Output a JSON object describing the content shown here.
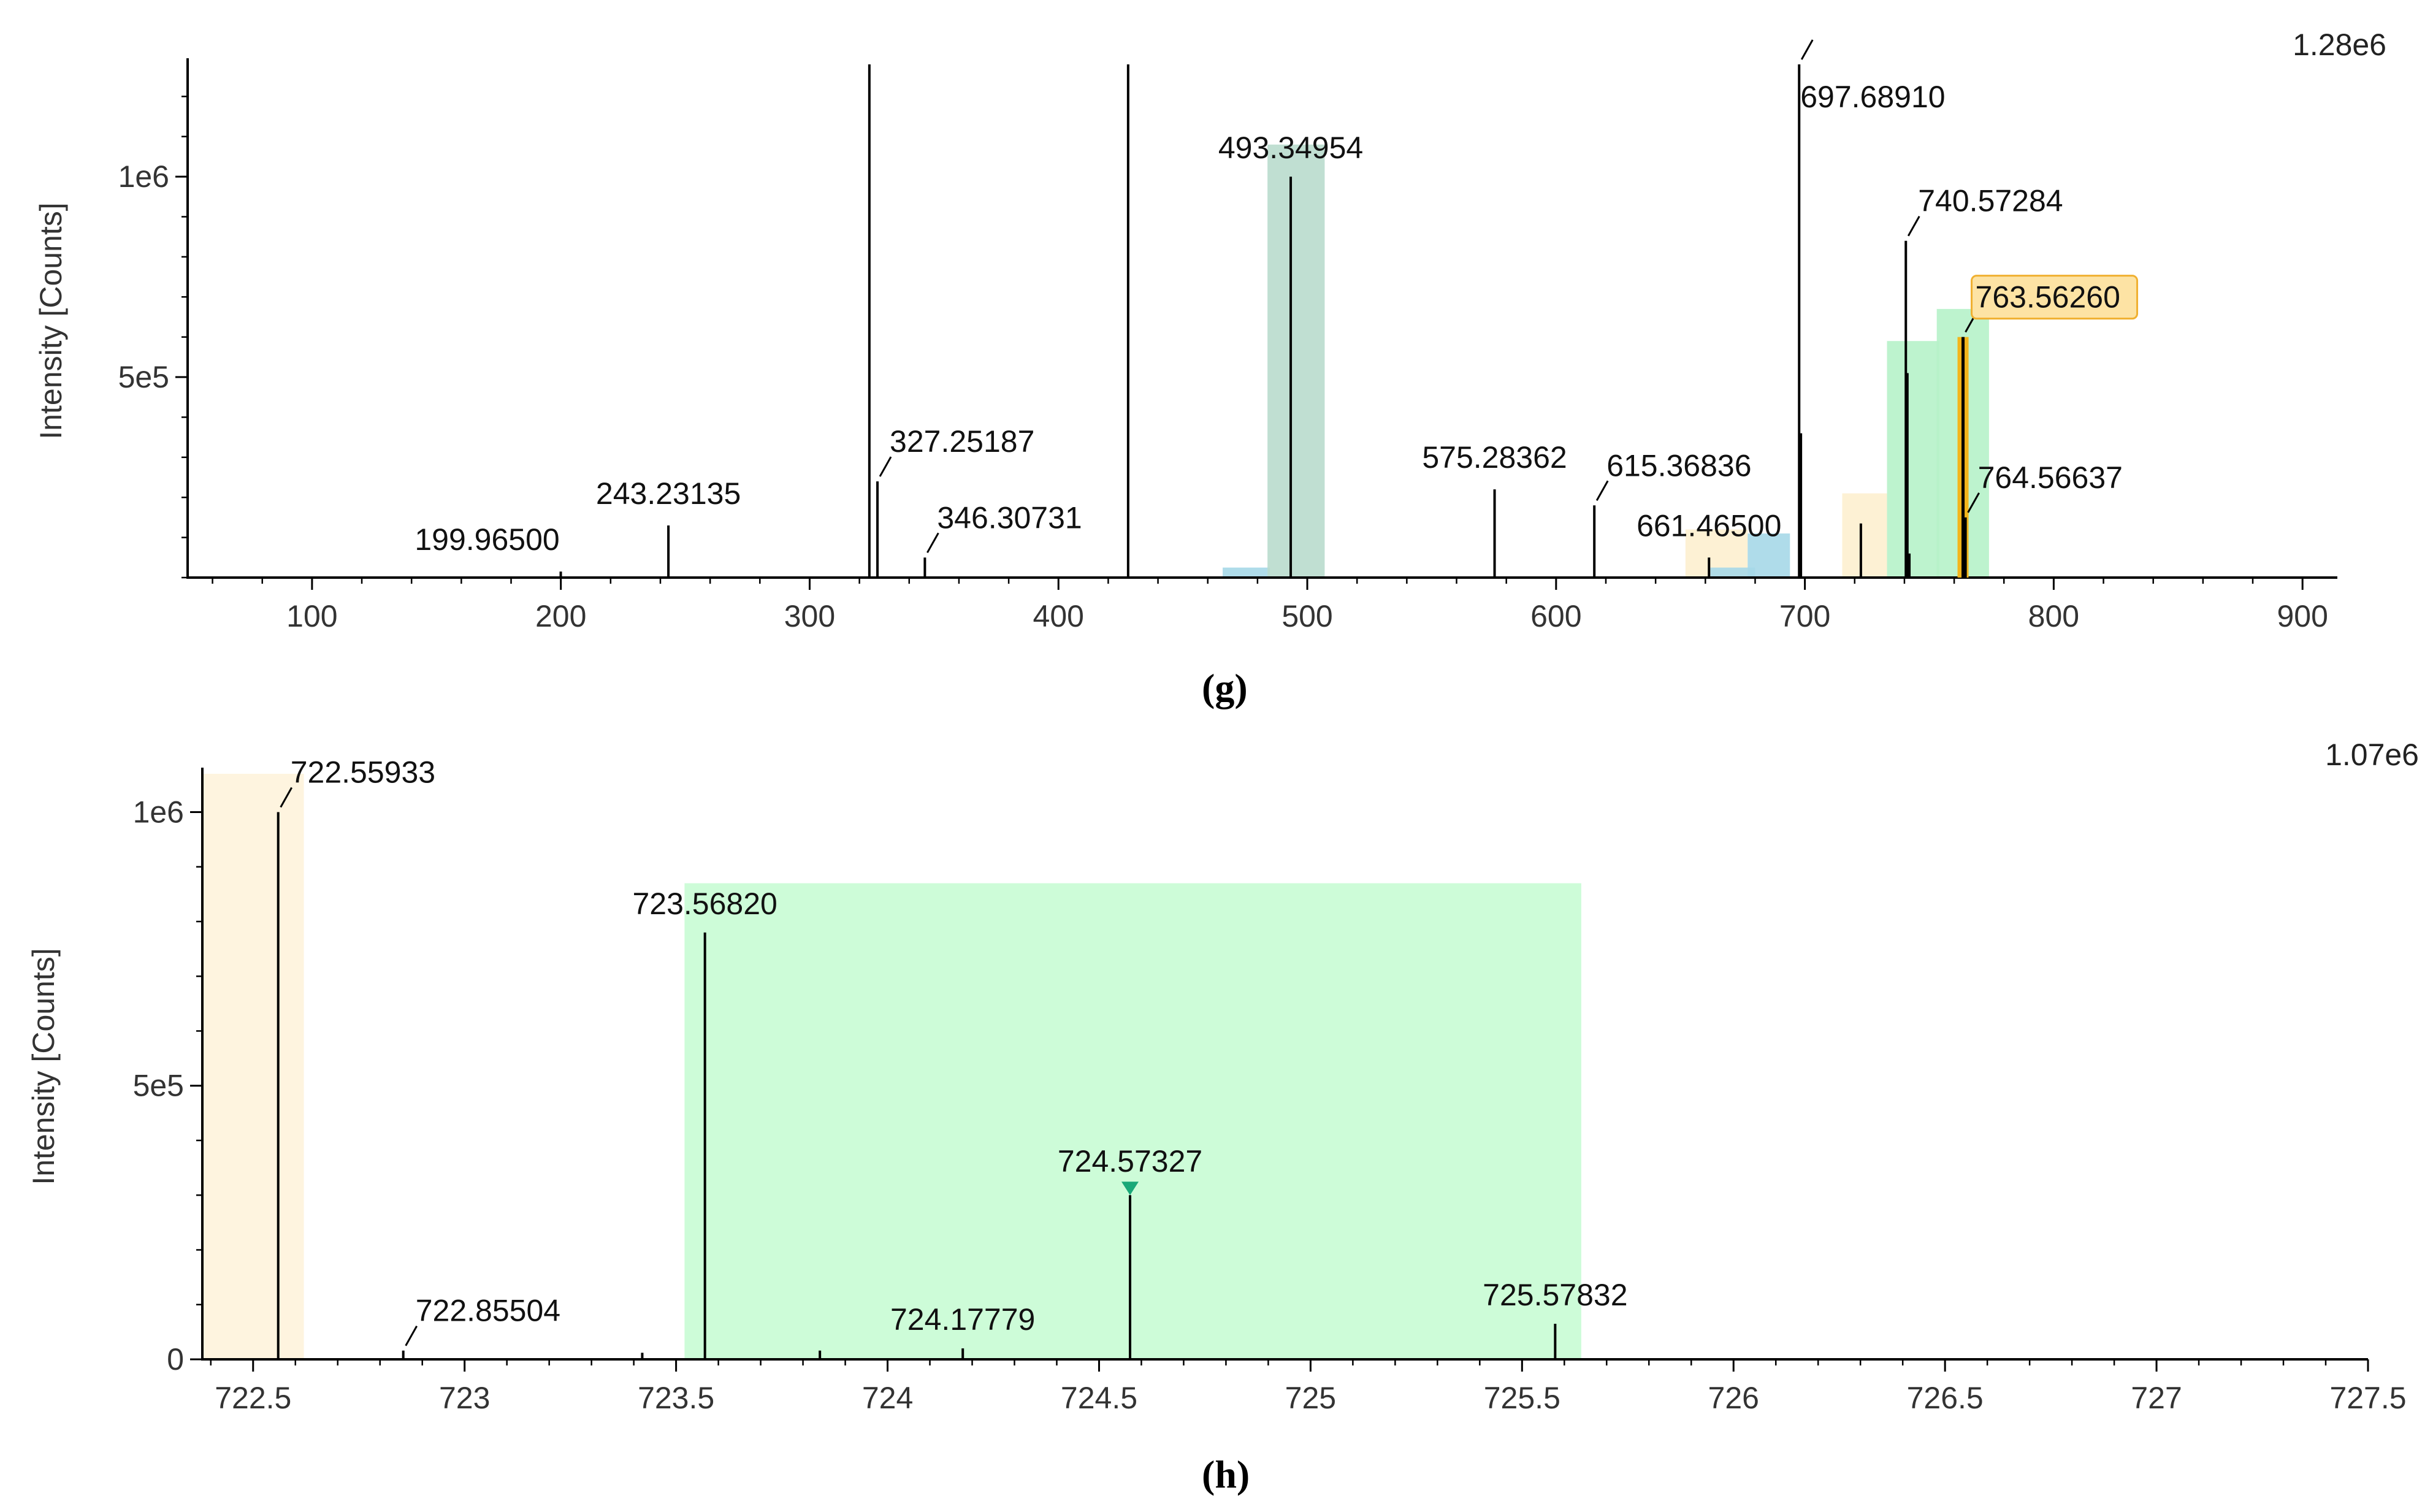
{
  "panels": [
    {
      "id": "g",
      "caption": "(g)",
      "scale_label": "1.28e6",
      "chart_data": {
        "type": "bar",
        "title": "",
        "xlabel": "",
        "ylabel": "Intensity [Counts]",
        "xlim": [
          50,
          914
        ],
        "ylim": [
          0,
          1280000
        ],
        "xticks": [
          100,
          200,
          300,
          400,
          500,
          600,
          700,
          800,
          900
        ],
        "yticks": [
          {
            "label": "5e5",
            "value": 500000
          },
          {
            "label": "1e6",
            "value": 1000000
          }
        ],
        "regions": [
          {
            "x0": 466,
            "x1": 485,
            "top": 25000,
            "color": "#a6d8e8"
          },
          {
            "x0": 484,
            "x1": 507,
            "top": 1080000,
            "color": "#b9dccd"
          },
          {
            "x0": 652,
            "x1": 677,
            "top": 120000,
            "color": "#fdefcf"
          },
          {
            "x0": 662,
            "x1": 680,
            "top": 25000,
            "color": "#a6d8e8"
          },
          {
            "x0": 677,
            "x1": 694,
            "top": 110000,
            "color": "#a6d8e8"
          },
          {
            "x0": 715,
            "x1": 733,
            "top": 210000,
            "color": "#fdefcf"
          },
          {
            "x0": 733,
            "x1": 754,
            "top": 590000,
            "color": "#b6f2c9"
          },
          {
            "x0": 753,
            "x1": 774,
            "top": 670000,
            "color": "#b6f2c9"
          }
        ],
        "peaks": [
          {
            "x": 199.965,
            "y": 15000,
            "label": "199.96500"
          },
          {
            "x": 243.23135,
            "y": 130000,
            "label": "243.23135"
          },
          {
            "x": 324.0,
            "y": 1280000
          },
          {
            "x": 327.25187,
            "y": 240000,
            "label": "327.25187"
          },
          {
            "x": 346.30731,
            "y": 50000,
            "label": "346.30731"
          },
          {
            "x": 428.0,
            "y": 1280000
          },
          {
            "x": 493.34954,
            "y": 1000000,
            "label": "493.34954"
          },
          {
            "x": 575.28362,
            "y": 220000,
            "label": "575.28362"
          },
          {
            "x": 615.36836,
            "y": 180000,
            "label": "615.36836"
          },
          {
            "x": 661.465,
            "y": 50000,
            "label": "661.46500"
          },
          {
            "x": 697.6891,
            "y": 1280000,
            "label": "697.68910"
          },
          {
            "x": 698.4,
            "y": 360000
          },
          {
            "x": 722.5,
            "y": 135000
          },
          {
            "x": 740.57284,
            "y": 840000,
            "label": "740.57284"
          },
          {
            "x": 741.2,
            "y": 510000
          },
          {
            "x": 742.0,
            "y": 60000
          },
          {
            "x": 763.5626,
            "y": 600000,
            "label": "763.56260",
            "highlight": true
          },
          {
            "x": 764.56637,
            "y": 150000,
            "label": "764.56637"
          }
        ]
      }
    },
    {
      "id": "h",
      "caption": "(h)",
      "scale_label": "1.07e6",
      "chart_data": {
        "type": "bar",
        "title": "",
        "xlabel": "",
        "ylabel": "Intensity [Counts]",
        "xlim": [
          722.38,
          727.5
        ],
        "ylim": [
          0,
          1070000
        ],
        "xticks": [
          722.5,
          723,
          723.5,
          724,
          724.5,
          725,
          725.5,
          726,
          726.5,
          727,
          727.5
        ],
        "yticks": [
          {
            "label": "0",
            "value": 0
          },
          {
            "label": "5e5",
            "value": 500000
          },
          {
            "label": "1e6",
            "value": 1000000
          }
        ],
        "regions": [
          {
            "x0": 722.38,
            "x1": 722.62,
            "top": 1070000,
            "color": "#fef3dc"
          },
          {
            "x0": 723.52,
            "x1": 725.64,
            "top": 870000,
            "color": "#c8fcd4"
          }
        ],
        "peaks": [
          {
            "x": 722.55933,
            "y": 1000000,
            "label": "722.55933"
          },
          {
            "x": 722.85504,
            "y": 16000,
            "label": "722.85504"
          },
          {
            "x": 723.42,
            "y": 12000
          },
          {
            "x": 723.5682,
            "y": 780000,
            "label": "723.56820"
          },
          {
            "x": 723.84,
            "y": 16000
          },
          {
            "x": 724.17779,
            "y": 20000,
            "label": "724.17779"
          },
          {
            "x": 724.57327,
            "y": 300000,
            "label": "724.57327",
            "marker": true
          },
          {
            "x": 725.57832,
            "y": 65000,
            "label": "725.57832"
          }
        ]
      }
    }
  ]
}
